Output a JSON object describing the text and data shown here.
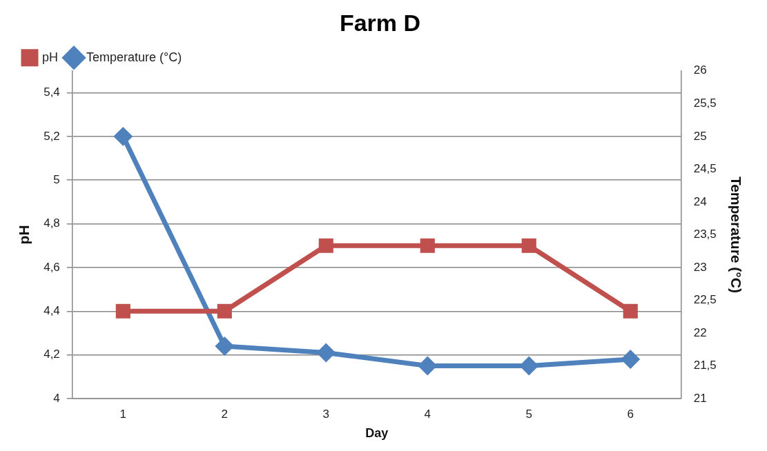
{
  "chart_data": {
    "type": "line",
    "title": "Farm D",
    "xlabel": "Day",
    "ylabel": "pH",
    "y2label": "Temperature (°C)",
    "categories": [
      "1",
      "2",
      "3",
      "4",
      "5",
      "6"
    ],
    "series": [
      {
        "name": "pH",
        "color": "#c0504d",
        "marker": "square",
        "values": [
          4.4,
          4.4,
          4.7,
          4.7,
          4.7,
          4.4
        ]
      },
      {
        "name": "Temperature (°C)",
        "color": "#4f81bd",
        "marker": "diamond",
        "axis": "y2",
        "values": [
          25,
          21.8,
          21.7,
          21.5,
          21.5,
          21.6
        ]
      }
    ],
    "ylim": [
      4,
      5.5
    ],
    "yticks": [
      4,
      {
        "value": 4.2,
        "label": "4,2"
      },
      {
        "value": 4.4,
        "label": "4,4"
      },
      {
        "value": 4.6,
        "label": "4,6"
      },
      {
        "value": 4.8,
        "label": "4,8"
      },
      5,
      {
        "value": 5.2,
        "label": "5,2"
      },
      {
        "value": 5.4,
        "label": "5,4"
      }
    ],
    "y2lim": [
      21,
      26
    ],
    "y2ticks": [
      21,
      {
        "value": 21.5,
        "label": "21,5"
      },
      22,
      {
        "value": 22.5,
        "label": "22,5"
      },
      23,
      {
        "value": 23.5,
        "label": "23,5"
      },
      24,
      {
        "value": 24.5,
        "label": "24,5"
      },
      25,
      {
        "value": 25.5,
        "label": "25,5"
      },
      26
    ],
    "grid": "y",
    "legend": "top left",
    "line_style": "solid"
  }
}
